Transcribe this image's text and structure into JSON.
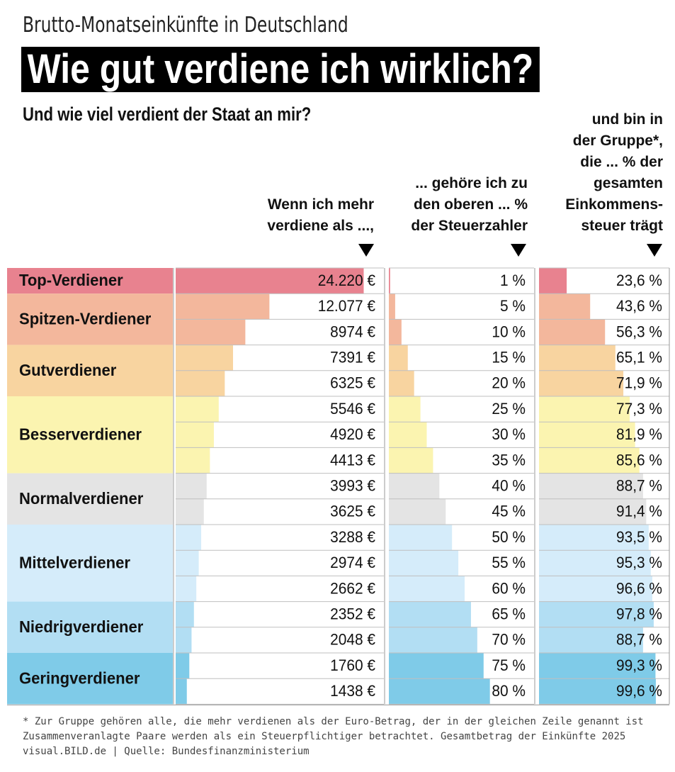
{
  "header": {
    "kicker": "Brutto-Monatseinkünfte in Deutschland",
    "headline": "Wie gut verdiene ich wirklich?",
    "subhead": "Und wie viel verdient der Staat an mir?"
  },
  "columns": {
    "income": "Wenn ich mehr\nverdiene als ...,",
    "rank": "... gehöre ich zu\nden oberen ... %\nder Steuerzahler",
    "share": "und bin in\nder Gruppe*,\ndie ... % der\ngesamten\nEinkommens-\nsteuer trägt"
  },
  "chart_data": {
    "type": "table",
    "groups": [
      {
        "name": "Top-Verdiener",
        "rows": 1,
        "color": "#e8828f"
      },
      {
        "name": "Spitzen-Verdiener",
        "rows": 2,
        "color": "#f3b79c"
      },
      {
        "name": "Gutverdiener",
        "rows": 2,
        "color": "#f8d4a0"
      },
      {
        "name": "Besserverdiener",
        "rows": 3,
        "color": "#fbf4b0"
      },
      {
        "name": "Normalverdiener",
        "rows": 2,
        "color": "#e4e4e4"
      },
      {
        "name": "Mittelverdiener",
        "rows": 3,
        "color": "#d5ecfa"
      },
      {
        "name": "Niedrigverdiener",
        "rows": 2,
        "color": "#b2def3"
      },
      {
        "name": "Geringverdiener",
        "rows": 2,
        "color": "#7fcbe8"
      }
    ],
    "income_eur": [
      24220,
      12077,
      8974,
      7391,
      6325,
      5546,
      4920,
      4413,
      3993,
      3625,
      3288,
      2974,
      2662,
      2352,
      2048,
      1760,
      1438
    ],
    "income_labels": [
      "24.220 €",
      "12.077 €",
      "8974 €",
      "7391 €",
      "6325 €",
      "5546 €",
      "4920 €",
      "4413 €",
      "3993 €",
      "3625 €",
      "3288 €",
      "2974 €",
      "2662 €",
      "2352 €",
      "2048 €",
      "1760 €",
      "1438 €"
    ],
    "top_percent": [
      1,
      5,
      10,
      15,
      20,
      25,
      30,
      35,
      40,
      45,
      50,
      55,
      60,
      65,
      70,
      75,
      80
    ],
    "top_percent_labels": [
      "1 %",
      "5 %",
      "10 %",
      "15 %",
      "20 %",
      "25 %",
      "30 %",
      "35 %",
      "40 %",
      "45 %",
      "50 %",
      "55 %",
      "60 %",
      "65 %",
      "70 %",
      "75 %",
      "80 %"
    ],
    "tax_share_percent": [
      23.6,
      43.6,
      56.3,
      65.1,
      71.9,
      77.3,
      81.9,
      85.6,
      88.7,
      91.4,
      93.5,
      95.3,
      96.6,
      97.8,
      88.7,
      99.3,
      99.6
    ],
    "tax_share_labels": [
      "23,6 %",
      "43,6 %",
      "56,3 %",
      "65,1 %",
      "71,9 %",
      "77,3 %",
      "81,9 %",
      "85,6 %",
      "88,7 %",
      "91,4 %",
      "93,5 %",
      "95,3 %",
      "96,6 %",
      "97,8 %",
      "88,7 %",
      "99,3 %",
      "99,6 %"
    ]
  },
  "footnote": {
    "line1": "* Zur Gruppe gehören alle, die mehr verdienen als der Euro-Betrag, der in der gleichen Zeile genannt ist",
    "line2": "Zusammenveranlagte Paare werden als ein Steuerpflichtiger betrachtet. Gesamtbetrag der Einkünfte 2025",
    "line3": "visual.BILD.de | Quelle: Bundesfinanzministerium"
  }
}
